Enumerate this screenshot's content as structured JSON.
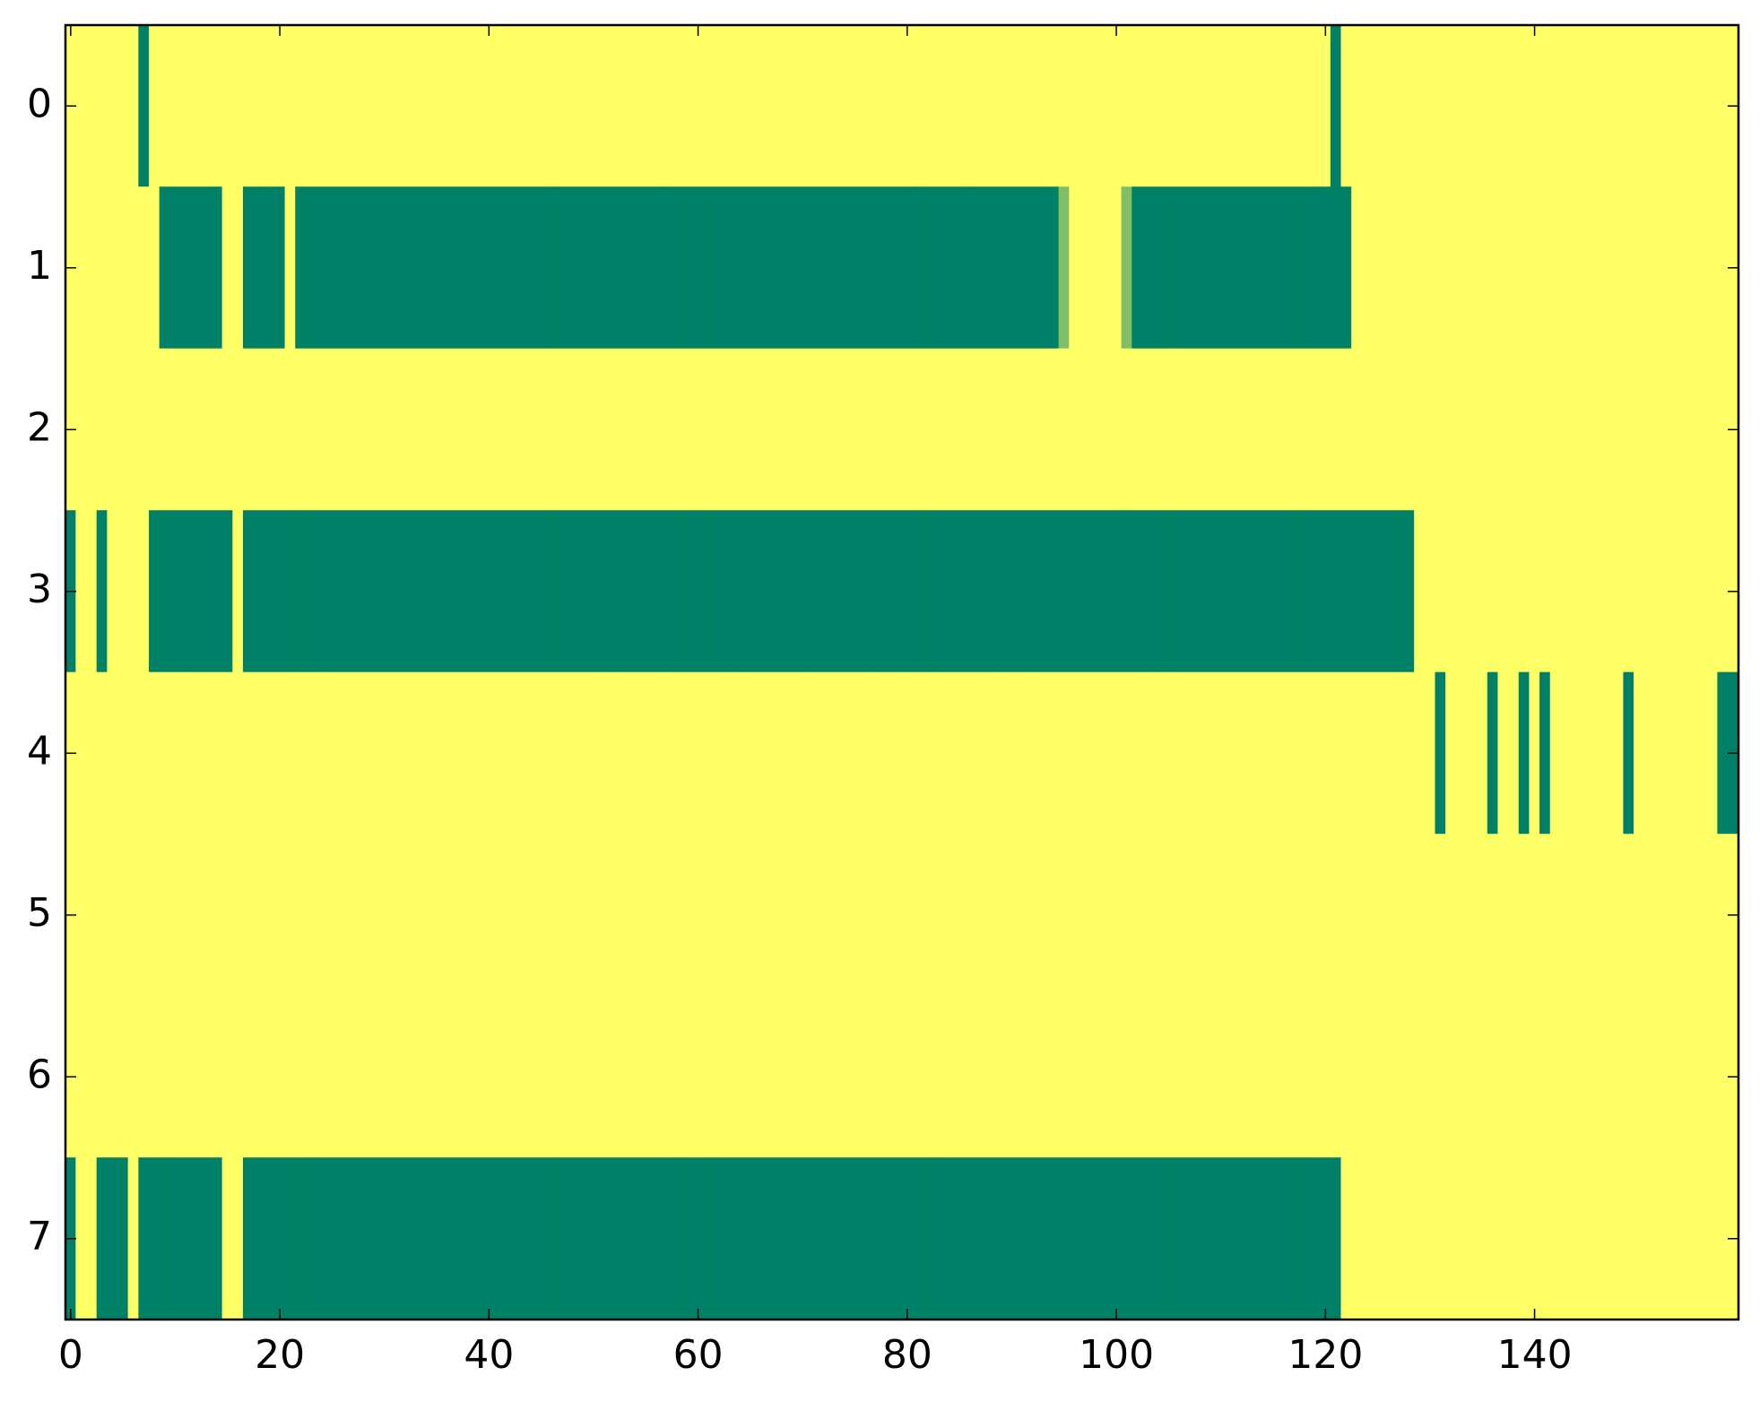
{
  "chart_data": {
    "type": "heatmap",
    "colormap": "summer",
    "xlim": [
      -0.5,
      159.5
    ],
    "ylim": [
      7.5,
      -0.5
    ],
    "xticks": [
      0,
      20,
      40,
      60,
      80,
      100,
      120,
      140
    ],
    "yticks": [
      0,
      1,
      2,
      3,
      4,
      5,
      6,
      7
    ],
    "z": [
      [
        1,
        1,
        1,
        1,
        1,
        1,
        1,
        0,
        1,
        1,
        1,
        1,
        1,
        1,
        1,
        1,
        1,
        1,
        1,
        1,
        1,
        1,
        1,
        1,
        1,
        1,
        1,
        1,
        1,
        1,
        1,
        1,
        1,
        1,
        1,
        1,
        1,
        1,
        1,
        1,
        1,
        1,
        1,
        1,
        1,
        1,
        1,
        1,
        1,
        1,
        1,
        1,
        1,
        1,
        1,
        1,
        1,
        1,
        1,
        1,
        1,
        1,
        1,
        1,
        1,
        1,
        1,
        1,
        1,
        1,
        1,
        1,
        1,
        1,
        1,
        1,
        1,
        1,
        1,
        1,
        1,
        1,
        1,
        1,
        1,
        1,
        1,
        1,
        1,
        1,
        1,
        1,
        1,
        1,
        1,
        1,
        1,
        1,
        1,
        1,
        1,
        1,
        1,
        1,
        1,
        1,
        1,
        1,
        1,
        1,
        1,
        1,
        1,
        1,
        1,
        1,
        1,
        1,
        1,
        1,
        1,
        0,
        1,
        1,
        1,
        1,
        1,
        1,
        1,
        1,
        1,
        1,
        1,
        1,
        1,
        1,
        1,
        1,
        1,
        1,
        1,
        1,
        1,
        1,
        1,
        1,
        1,
        1,
        1,
        1,
        1,
        1,
        1,
        1,
        1,
        1,
        1,
        1,
        1,
        1
      ],
      [
        1,
        1,
        1,
        1,
        1,
        1,
        1,
        1,
        1,
        0,
        0,
        0,
        0,
        0,
        0,
        1,
        1,
        0,
        0,
        0,
        0,
        1,
        0,
        0,
        0,
        0,
        0,
        0,
        0,
        0,
        0,
        0,
        0,
        0,
        0,
        0,
        0,
        0,
        0,
        0,
        0,
        0,
        0,
        0,
        0,
        0,
        0,
        0,
        0,
        0,
        0,
        0,
        0,
        0,
        0,
        0,
        0,
        0,
        0,
        0,
        0,
        0,
        0,
        0,
        0,
        0,
        0,
        0,
        0,
        0,
        0,
        0,
        0,
        0,
        0,
        0,
        0,
        0,
        0,
        0,
        0,
        0,
        0,
        0,
        0,
        0,
        0,
        0,
        0,
        0,
        0,
        0,
        0,
        0,
        0,
        0.5,
        1,
        1,
        1,
        1,
        1,
        0.5,
        0,
        0,
        0,
        0,
        0,
        0,
        0,
        0,
        0,
        0,
        0,
        0,
        0,
        0,
        0,
        0,
        0,
        0,
        0,
        0,
        0,
        1,
        1,
        1,
        1,
        1,
        1,
        1,
        1,
        1,
        1,
        1,
        1,
        1,
        1,
        1,
        1,
        1,
        1,
        1,
        1,
        1,
        1,
        1,
        1,
        1,
        1,
        1,
        1,
        1,
        1,
        1,
        1,
        1,
        1,
        1,
        1,
        1
      ],
      [
        1,
        1,
        1,
        1,
        1,
        1,
        1,
        1,
        1,
        1,
        1,
        1,
        1,
        1,
        1,
        1,
        1,
        1,
        1,
        1,
        1,
        1,
        1,
        1,
        1,
        1,
        1,
        1,
        1,
        1,
        1,
        1,
        1,
        1,
        1,
        1,
        1,
        1,
        1,
        1,
        1,
        1,
        1,
        1,
        1,
        1,
        1,
        1,
        1,
        1,
        1,
        1,
        1,
        1,
        1,
        1,
        1,
        1,
        1,
        1,
        1,
        1,
        1,
        1,
        1,
        1,
        1,
        1,
        1,
        1,
        1,
        1,
        1,
        1,
        1,
        1,
        1,
        1,
        1,
        1,
        1,
        1,
        1,
        1,
        1,
        1,
        1,
        1,
        1,
        1,
        1,
        1,
        1,
        1,
        1,
        1,
        1,
        1,
        1,
        1,
        1,
        1,
        1,
        1,
        1,
        1,
        1,
        1,
        1,
        1,
        1,
        1,
        1,
        1,
        1,
        1,
        1,
        1,
        1,
        1,
        1,
        1,
        1,
        1,
        1,
        1,
        1,
        1,
        1,
        1,
        1,
        1,
        1,
        1,
        1,
        1,
        1,
        1,
        1,
        1,
        1,
        1,
        1,
        1,
        1,
        1,
        1,
        1,
        1,
        1,
        1,
        1,
        1,
        1,
        1,
        1,
        1,
        1,
        1,
        1
      ],
      [
        0,
        1,
        1,
        0,
        1,
        1,
        1,
        1,
        0,
        0,
        0,
        0,
        0,
        0,
        0,
        0,
        1,
        0,
        0,
        0,
        0,
        0,
        0,
        0,
        0,
        0,
        0,
        0,
        0,
        0,
        0,
        0,
        0,
        0,
        0,
        0,
        0,
        0,
        0,
        0,
        0,
        0,
        0,
        0,
        0,
        0,
        0,
        0,
        0,
        0,
        0,
        0,
        0,
        0,
        0,
        0,
        0,
        0,
        0,
        0,
        0,
        0,
        0,
        0,
        0,
        0,
        0,
        0,
        0,
        0,
        0,
        0,
        0,
        0,
        0,
        0,
        0,
        0,
        0,
        0,
        0,
        0,
        0,
        0,
        0,
        0,
        0,
        0,
        0,
        0,
        0,
        0,
        0,
        0,
        0,
        0,
        0,
        0,
        0,
        0,
        0,
        0,
        0,
        0,
        0,
        0,
        0,
        0,
        0,
        0,
        0,
        0,
        0,
        0,
        0,
        0,
        0,
        0,
        0,
        0,
        0,
        0,
        0,
        0,
        0,
        0,
        0,
        0,
        0,
        1,
        1,
        1,
        1,
        1,
        1,
        1,
        1,
        1,
        1,
        1,
        1,
        1,
        1,
        1,
        1,
        1,
        1,
        1,
        1,
        1,
        1,
        1,
        1,
        1,
        1,
        1,
        1,
        1,
        1,
        1
      ],
      [
        1,
        1,
        1,
        1,
        1,
        1,
        1,
        1,
        1,
        1,
        1,
        1,
        1,
        1,
        1,
        1,
        1,
        1,
        1,
        1,
        1,
        1,
        1,
        1,
        1,
        1,
        1,
        1,
        1,
        1,
        1,
        1,
        1,
        1,
        1,
        1,
        1,
        1,
        1,
        1,
        1,
        1,
        1,
        1,
        1,
        1,
        1,
        1,
        1,
        1,
        1,
        1,
        1,
        1,
        1,
        1,
        1,
        1,
        1,
        1,
        1,
        1,
        1,
        1,
        1,
        1,
        1,
        1,
        1,
        1,
        1,
        1,
        1,
        1,
        1,
        1,
        1,
        1,
        1,
        1,
        1,
        1,
        1,
        1,
        1,
        1,
        1,
        1,
        1,
        1,
        1,
        1,
        1,
        1,
        1,
        1,
        1,
        1,
        1,
        1,
        1,
        1,
        1,
        1,
        1,
        1,
        1,
        1,
        1,
        1,
        1,
        1,
        1,
        1,
        1,
        1,
        1,
        1,
        1,
        1,
        1,
        1,
        1,
        1,
        1,
        1,
        1,
        1,
        1,
        1,
        1,
        0,
        1,
        1,
        1,
        1,
        0,
        1,
        1,
        0,
        1,
        0,
        1,
        1,
        1,
        1,
        1,
        1,
        1,
        0,
        1,
        1,
        1,
        1,
        1,
        1,
        1,
        1,
        0,
        0
      ],
      [
        1,
        1,
        1,
        1,
        1,
        1,
        1,
        1,
        1,
        1,
        1,
        1,
        1,
        1,
        1,
        1,
        1,
        1,
        1,
        1,
        1,
        1,
        1,
        1,
        1,
        1,
        1,
        1,
        1,
        1,
        1,
        1,
        1,
        1,
        1,
        1,
        1,
        1,
        1,
        1,
        1,
        1,
        1,
        1,
        1,
        1,
        1,
        1,
        1,
        1,
        1,
        1,
        1,
        1,
        1,
        1,
        1,
        1,
        1,
        1,
        1,
        1,
        1,
        1,
        1,
        1,
        1,
        1,
        1,
        1,
        1,
        1,
        1,
        1,
        1,
        1,
        1,
        1,
        1,
        1,
        1,
        1,
        1,
        1,
        1,
        1,
        1,
        1,
        1,
        1,
        1,
        1,
        1,
        1,
        1,
        1,
        1,
        1,
        1,
        1,
        1,
        1,
        1,
        1,
        1,
        1,
        1,
        1,
        1,
        1,
        1,
        1,
        1,
        1,
        1,
        1,
        1,
        1,
        1,
        1,
        1,
        1,
        1,
        1,
        1,
        1,
        1,
        1,
        1,
        1,
        1,
        1,
        1,
        1,
        1,
        1,
        1,
        1,
        1,
        1,
        1,
        1,
        1,
        1,
        1,
        1,
        1,
        1,
        1,
        1,
        1,
        1,
        1,
        1,
        1,
        1,
        1,
        1,
        1,
        1
      ],
      [
        1,
        1,
        1,
        1,
        1,
        1,
        1,
        1,
        1,
        1,
        1,
        1,
        1,
        1,
        1,
        1,
        1,
        1,
        1,
        1,
        1,
        1,
        1,
        1,
        1,
        1,
        1,
        1,
        1,
        1,
        1,
        1,
        1,
        1,
        1,
        1,
        1,
        1,
        1,
        1,
        1,
        1,
        1,
        1,
        1,
        1,
        1,
        1,
        1,
        1,
        1,
        1,
        1,
        1,
        1,
        1,
        1,
        1,
        1,
        1,
        1,
        1,
        1,
        1,
        1,
        1,
        1,
        1,
        1,
        1,
        1,
        1,
        1,
        1,
        1,
        1,
        1,
        1,
        1,
        1,
        1,
        1,
        1,
        1,
        1,
        1,
        1,
        1,
        1,
        1,
        1,
        1,
        1,
        1,
        1,
        1,
        1,
        1,
        1,
        1,
        1,
        1,
        1,
        1,
        1,
        1,
        1,
        1,
        1,
        1,
        1,
        1,
        1,
        1,
        1,
        1,
        1,
        1,
        1,
        1,
        1,
        1,
        1,
        1,
        1,
        1,
        1,
        1,
        1,
        1,
        1,
        1,
        1,
        1,
        1,
        1,
        1,
        1,
        1,
        1,
        1,
        1,
        1,
        1,
        1,
        1,
        1,
        1,
        1,
        1,
        1,
        1,
        1,
        1,
        1,
        1,
        1,
        1,
        1,
        1
      ],
      [
        0,
        1,
        1,
        0,
        0,
        0,
        1,
        0,
        0,
        0,
        0,
        0,
        0,
        0,
        0,
        1,
        1,
        0,
        0,
        0,
        0,
        0,
        0,
        0,
        0,
        0,
        0,
        0,
        0,
        0,
        0,
        0,
        0,
        0,
        0,
        0,
        0,
        0,
        0,
        0,
        0,
        0,
        0,
        0,
        0,
        0,
        0,
        0,
        0,
        0,
        0,
        0,
        0,
        0,
        0,
        0,
        0,
        0,
        0,
        0,
        0,
        0,
        0,
        0,
        0,
        0,
        0,
        0,
        0,
        0,
        0,
        0,
        0,
        0,
        0,
        0,
        0,
        0,
        0,
        0,
        0,
        0,
        0,
        0,
        0,
        0,
        0,
        0,
        0,
        0,
        0,
        0,
        0,
        0,
        0,
        0,
        0,
        0,
        0,
        0,
        0,
        0,
        0,
        0,
        0,
        0,
        0,
        0,
        0,
        0,
        0,
        0,
        0,
        0,
        0,
        0,
        0,
        0,
        0,
        0,
        0,
        0,
        1,
        1,
        1,
        1,
        1,
        1,
        1,
        1,
        1,
        1,
        1,
        1,
        1,
        1,
        1,
        1,
        1,
        1,
        1,
        1,
        1,
        1,
        1,
        1,
        1,
        1,
        1,
        1,
        1,
        1,
        1,
        1,
        1,
        1,
        1,
        1,
        1,
        1
      ]
    ]
  }
}
